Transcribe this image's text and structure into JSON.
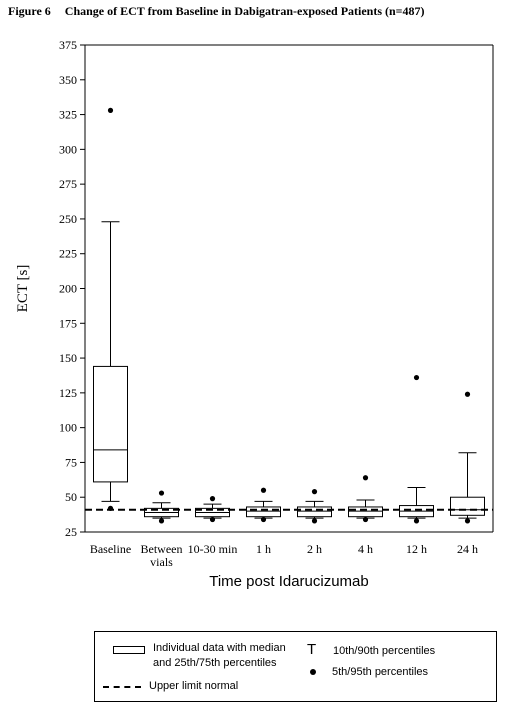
{
  "figure_label": "Figure 6",
  "chart_data": {
    "type": "box",
    "title": "Change of ECT from Baseline in Dabigatran-exposed Patients (n=487)",
    "xlabel": "Time post Idarucizumab",
    "ylabel": "ECT [s]",
    "ylim": [
      25,
      375
    ],
    "yticks": [
      25,
      50,
      75,
      100,
      125,
      150,
      175,
      200,
      225,
      250,
      275,
      300,
      325,
      350,
      375
    ],
    "grid": false,
    "reference_line": {
      "label": "Upper limit normal",
      "y": 41,
      "style": "dashed"
    },
    "categories": [
      {
        "label": [
          "Baseline"
        ],
        "p5": 42,
        "p10": 47,
        "q1": 61,
        "median": 84,
        "q3": 144,
        "p90": 248,
        "p95": 328
      },
      {
        "label": [
          "Between",
          "vials"
        ],
        "p5": 33,
        "p10": 35,
        "q1": 36,
        "median": 39,
        "q3": 42,
        "p90": 46,
        "p95": 53
      },
      {
        "label": [
          "10-30 min"
        ],
        "p5": 34,
        "p10": 35,
        "q1": 36,
        "median": 39,
        "q3": 42,
        "p90": 45,
        "p95": 49
      },
      {
        "label": [
          "1 h"
        ],
        "p5": 34,
        "p10": 35,
        "q1": 36,
        "median": 40,
        "q3": 43,
        "p90": 47,
        "p95": 55
      },
      {
        "label": [
          "2 h"
        ],
        "p5": 33,
        "p10": 35,
        "q1": 36,
        "median": 40,
        "q3": 43,
        "p90": 47,
        "p95": 54
      },
      {
        "label": [
          "4 h"
        ],
        "p5": 34,
        "p10": 35,
        "q1": 36,
        "median": 40,
        "q3": 43,
        "p90": 48,
        "p95": 64
      },
      {
        "label": [
          "12 h"
        ],
        "p5": 33,
        "p10": 35,
        "q1": 36,
        "median": 40,
        "q3": 44,
        "p90": 57,
        "p95": 136
      },
      {
        "label": [
          "24 h"
        ],
        "p5": 33,
        "p10": 35,
        "q1": 37,
        "median": 41,
        "q3": 50,
        "p90": 82,
        "p95": 124
      }
    ]
  },
  "legend": {
    "box_label_line1": "Individual data with median",
    "box_label_line2": "and 25th/75th percentiles",
    "whisker_symbol": "T",
    "whisker_label": "10th/90th percentiles",
    "dot_label": "5th/95th percentiles",
    "line_label": "Upper limit normal"
  }
}
